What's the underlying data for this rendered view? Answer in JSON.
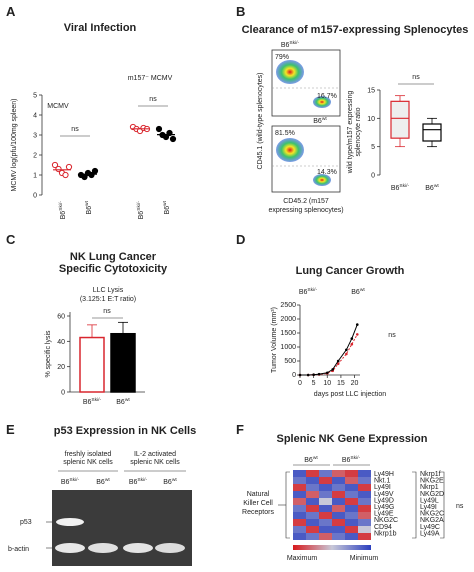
{
  "A": {
    "letter": "A",
    "title": "Viral Infection",
    "y_label": "MCMV log(pfu/100mg spleen)",
    "ylim": [
      0,
      5
    ],
    "yticks": [
      0,
      1,
      2,
      3,
      4,
      5
    ],
    "groups": [
      {
        "name": "MCMV",
        "sig": "ns"
      },
      {
        "name": "m157⁻ MCMV",
        "sig": "ns"
      }
    ],
    "categories": [
      {
        "base": "B6",
        "sup": "Ski/-"
      },
      {
        "base": "B6",
        "sup": "wt"
      },
      {
        "base": "B6",
        "sup": "Ski/-"
      },
      {
        "base": "B6",
        "sup": "wt"
      }
    ],
    "colors": [
      "#d9262e",
      "#000000",
      "#d9262e",
      "#000000"
    ],
    "open": [
      true,
      false,
      true,
      false
    ],
    "points": [
      [
        1.5,
        1.3,
        1.1,
        1.0,
        1.4
      ],
      [
        1.0,
        0.9,
        1.1,
        1.0,
        1.2
      ],
      [
        3.4,
        3.3,
        3.2,
        3.35,
        3.3
      ],
      [
        3.3,
        3.0,
        2.9,
        3.1,
        2.8
      ]
    ],
    "means": [
      1.26,
      1.04,
      3.31,
      3.02
    ]
  },
  "B": {
    "letter": "B",
    "title": "Clearance of m157-expressing Splenocytes",
    "flow": [
      {
        "label": {
          "base": "B6",
          "sup": "Ski/-"
        },
        "color": "#d9262e",
        "upper": "79%",
        "lower": "16.7%"
      },
      {
        "label": {
          "base": "B6",
          "sup": "wt"
        },
        "color": "#000000",
        "upper": "81.5%",
        "lower": "14.3%"
      }
    ],
    "flow_y_label": "CD45.1 (wild-type splenocytes)",
    "flow_x_label": [
      "CD45.2 (m157",
      "expressing splenocytes)"
    ],
    "box": {
      "y_label": [
        "wild type/m157 expressing",
        "splenocyte ratio"
      ],
      "ylim": [
        0,
        15
      ],
      "yticks": [
        0,
        5,
        10,
        15
      ],
      "sig": "ns",
      "categories": [
        {
          "base": "B6",
          "sup": "Ski/-"
        },
        {
          "base": "B6",
          "sup": "wt"
        }
      ],
      "colors": [
        "#d9262e",
        "#000000"
      ],
      "min": [
        5,
        5
      ],
      "q1": [
        6.5,
        6
      ],
      "median": [
        10,
        8
      ],
      "q3": [
        13,
        9
      ],
      "max": [
        14,
        10
      ]
    }
  },
  "C": {
    "letter": "C",
    "title": [
      "NK Lung Cancer",
      "Specific Cytotoxicity"
    ],
    "subtitle": [
      "LLC Lysis",
      "(3.125:1 E:T ratio)"
    ],
    "y_label": "% specific lysis",
    "ylim": [
      0,
      60
    ],
    "yticks": [
      0,
      20,
      40,
      60
    ],
    "sig": "ns",
    "categories": [
      {
        "base": "B6",
        "sup": "Ski/-"
      },
      {
        "base": "B6",
        "sup": "wt"
      }
    ],
    "colors": [
      "#d9262e",
      "#000000"
    ],
    "values": [
      43,
      46
    ],
    "errors": [
      10,
      9
    ]
  },
  "D": {
    "letter": "D",
    "title": "Lung Cancer Growth",
    "y_label": "Tumor Volume (mm³)",
    "x_label": "days post LLC injection",
    "xlim": [
      0,
      22
    ],
    "xticks": [
      0,
      5,
      10,
      15,
      20
    ],
    "ylim": [
      0,
      2500
    ],
    "yticks": [
      0,
      500,
      1000,
      1500,
      2000,
      2500
    ],
    "sig": "ns",
    "x": [
      0,
      3,
      5,
      7,
      10,
      12,
      14,
      17,
      19,
      21
    ],
    "series": [
      {
        "name": {
          "base": "B6",
          "sup": "Ski/-"
        },
        "color": "#d9262e",
        "values": [
          0,
          0,
          10,
          20,
          60,
          150,
          400,
          750,
          1100,
          1450
        ]
      },
      {
        "name": {
          "base": "B6",
          "sup": "wt"
        },
        "color": "#000000",
        "values": [
          0,
          0,
          10,
          30,
          80,
          200,
          500,
          900,
          1300,
          1800
        ]
      }
    ]
  },
  "E": {
    "letter": "E",
    "title": "p53 Expression in NK Cells",
    "groups": [
      [
        "freshly isolated",
        "splenic NK cells"
      ],
      [
        "IL-2 activated",
        "splenic NK cells"
      ]
    ],
    "lanes": [
      {
        "base": "B6",
        "sup": "Ski/-"
      },
      {
        "base": "B6",
        "sup": "wt"
      },
      {
        "base": "B6",
        "sup": "Ski/-"
      },
      {
        "base": "B6",
        "sup": "wt"
      }
    ],
    "lane_colors": [
      "#d9262e",
      "#000000",
      "#d9262e",
      "#000000"
    ],
    "rows": [
      "p53",
      "b-actin"
    ]
  },
  "F": {
    "letter": "F",
    "title": "Splenic NK Gene Expression",
    "groups": [
      {
        "base": "B6",
        "sup": "wt"
      },
      {
        "base": "B6",
        "sup": "Ski/-"
      }
    ],
    "group_colors": [
      "#000000",
      "#d9262e"
    ],
    "row_group": [
      "Natural",
      "Killer Cell",
      "Receptors"
    ],
    "genes_left": [
      "Ly49H",
      "Nkt.1",
      "Ly49I",
      "Ly49V",
      "Ly49D",
      "Ly49G",
      "Ly49E",
      "NKG2C",
      "CD94",
      "Nkrp1b"
    ],
    "genes_right": [
      "Nkrp1f",
      "NKG2E",
      "Nkrp1",
      "NKG2D",
      "Ly49L",
      "Ly49I",
      "NKG2C",
      "NKG2A",
      "Ly49C",
      "Ly49A"
    ],
    "sig": "ns",
    "scale": [
      "Maximum",
      "Minimum"
    ],
    "heatmap": [
      [
        0.1,
        0.9,
        0.2,
        0.8,
        0.9,
        0.1
      ],
      [
        0.2,
        0.1,
        0.9,
        0.1,
        0.8,
        0.2
      ],
      [
        0.9,
        0.2,
        0.1,
        0.2,
        0.1,
        0.9
      ],
      [
        0.1,
        0.8,
        0.2,
        0.9,
        0.2,
        0.1
      ],
      [
        0.8,
        0.1,
        0.5,
        0.1,
        0.9,
        0.2
      ],
      [
        0.2,
        0.9,
        0.1,
        0.8,
        0.1,
        0.9
      ],
      [
        0.1,
        0.2,
        0.9,
        0.1,
        0.2,
        0.8
      ],
      [
        0.9,
        0.1,
        0.2,
        0.9,
        0.1,
        0.2
      ],
      [
        0.2,
        0.9,
        0.1,
        0.1,
        0.9,
        0.5
      ],
      [
        0.1,
        0.2,
        0.8,
        0.2,
        0.1,
        0.9
      ]
    ]
  }
}
